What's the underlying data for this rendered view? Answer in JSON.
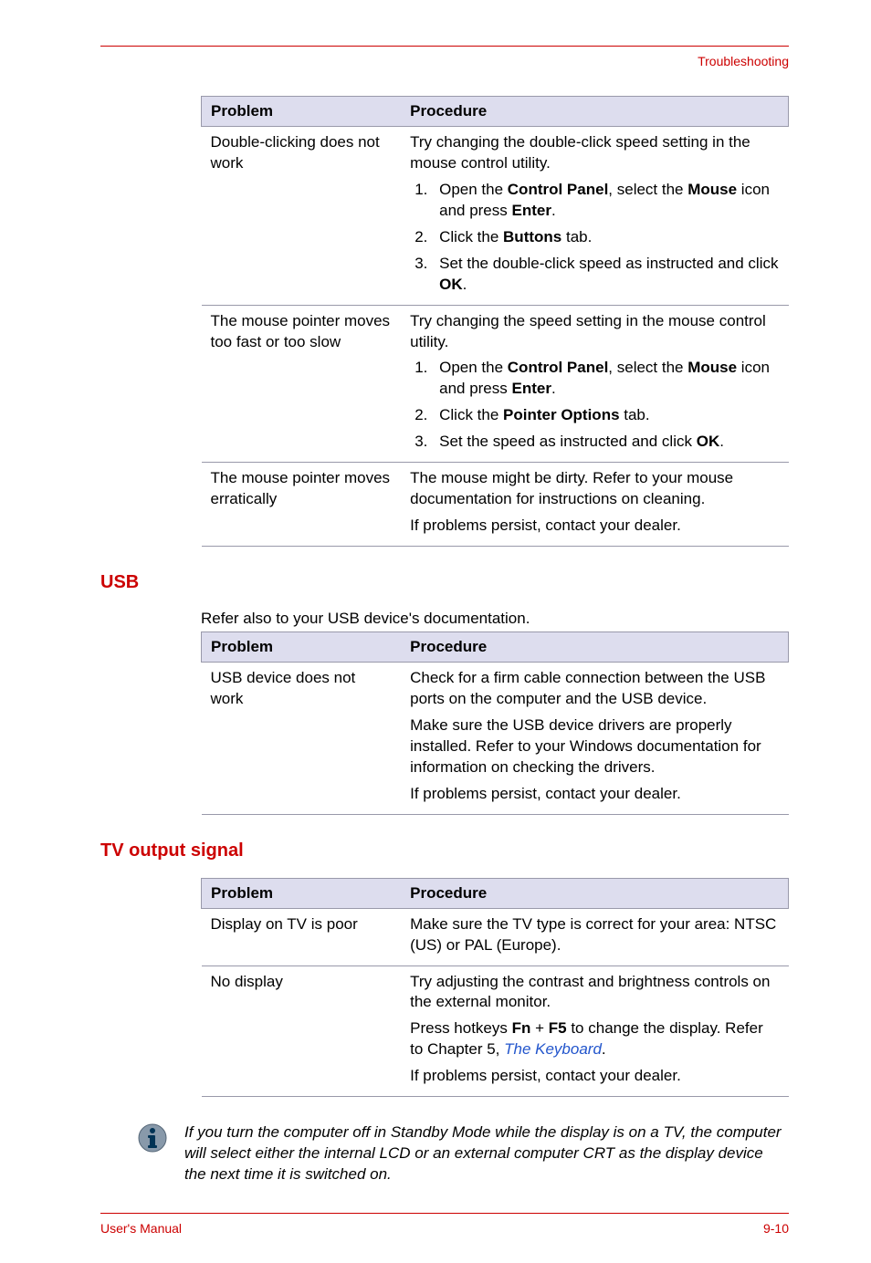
{
  "header": {
    "section": "Troubleshooting"
  },
  "table1": {
    "headers": [
      "Problem",
      "Procedure"
    ],
    "rows": [
      {
        "problem": "Double-clicking does not work",
        "intro": "Try changing the double-click speed setting in the mouse control utility.",
        "steps": [
          "Open the <b>Control Panel</b>, select the <b>Mouse</b> icon and press <b>Enter</b>.",
          "Click the <b>Buttons</b> tab.",
          "Set the double-click speed as instructed and click <b>OK</b>."
        ]
      },
      {
        "problem": "The mouse pointer moves too fast or too slow",
        "intro": "Try changing the speed setting in the mouse control utility.",
        "steps": [
          "Open the <b>Control Panel</b>, select the <b>Mouse</b> icon and press <b>Enter</b>.",
          "Click the <b>Pointer Options</b> tab.",
          "Set the speed as instructed and click <b>OK</b>."
        ]
      },
      {
        "problem": "The mouse pointer moves erratically",
        "paras": [
          "The mouse might be dirty. Refer to your mouse documentation for instructions on cleaning.",
          "If problems persist, contact your dealer."
        ]
      }
    ]
  },
  "usb": {
    "heading": "USB",
    "intro": "Refer also to your USB device's documentation.",
    "headers": [
      "Problem",
      "Procedure"
    ],
    "row": {
      "problem": "USB device does not work",
      "paras": [
        "Check for a firm cable connection between the USB ports on the computer and the USB device.",
        "Make sure the USB device drivers are properly installed. Refer to your Windows documentation for information on checking the drivers.",
        "If problems persist, contact your dealer."
      ]
    }
  },
  "tv": {
    "heading": "TV output signal",
    "headers": [
      "Problem",
      "Procedure"
    ],
    "rows": [
      {
        "problem": "Display on TV is poor",
        "paras": [
          "Make sure the TV type is correct for your area: NTSC (US) or PAL (Europe)."
        ]
      },
      {
        "problem": "No display",
        "paras": [
          "Try adjusting the contrast and brightness controls on the external monitor.",
          "Press hotkeys <b>Fn</b> + <b>F5</b> to change the display. Refer to Chapter 5, <span class=\"link\">The Keyboard</span>.",
          "If problems persist, contact your dealer."
        ]
      }
    ]
  },
  "note": "If you turn the computer off in Standby Mode while the display is on a TV, the computer will select either the internal LCD or an external computer CRT as the display device the next time it is switched on.",
  "footer": {
    "left": "User's Manual",
    "right": "9-10"
  }
}
